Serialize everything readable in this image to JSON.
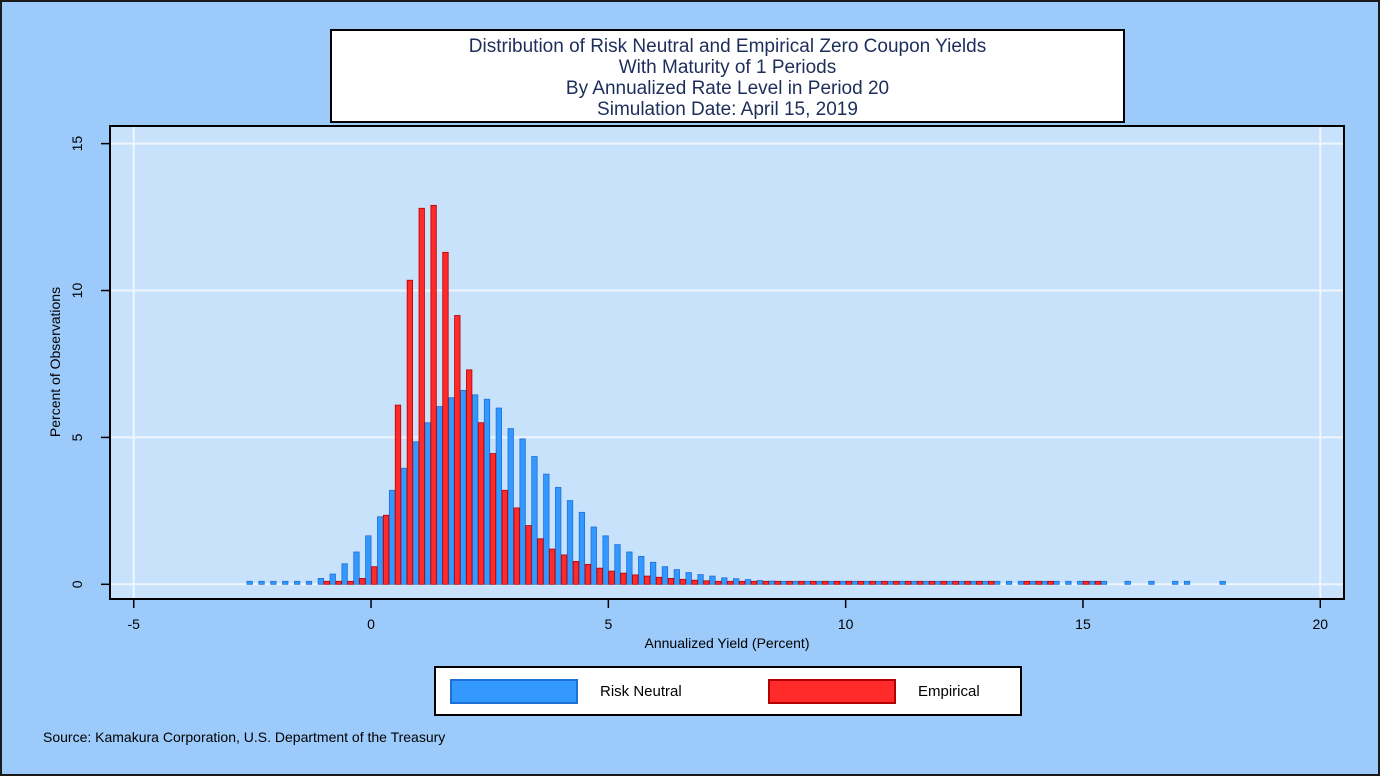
{
  "title_lines": [
    "Distribution of Risk Neutral and Empirical Zero Coupon Yields",
    "With Maturity of 1 Periods",
    "By Annualized Rate Level in Period 20",
    "Simulation Date: April 15, 2019"
  ],
  "source": "Source: Kamakura Corporation, U.S. Department of the Treasury",
  "colors": {
    "page_bg": "#9ccbfb",
    "plot_bg": "#c8e2fb",
    "grid": "#eef5fd",
    "risk_neutral": "#3399ff",
    "risk_neutral_edge": "#1f70d6",
    "empirical": "#ff2a2a",
    "empirical_edge": "#b30000"
  },
  "chart_data": {
    "type": "bar",
    "xlabel": "Annualized Yield (Percent)",
    "ylabel": "Percent of Observations",
    "xlim": [
      -5.5,
      20.5
    ],
    "ylim": [
      -0.5,
      15.6
    ],
    "x_ticks": [
      -5,
      0,
      5,
      10,
      15,
      20
    ],
    "y_ticks": [
      0,
      5,
      10,
      15
    ],
    "grid": true,
    "legend_position": "bottom",
    "bin_width": 0.25,
    "series": [
      {
        "name": "Risk Neutral",
        "x": [
          -2.5,
          -2.25,
          -2.0,
          -1.75,
          -1.5,
          -1.25,
          -1.0,
          -0.75,
          -0.5,
          -0.25,
          0.0,
          0.25,
          0.5,
          0.75,
          1.0,
          1.25,
          1.5,
          1.75,
          2.0,
          2.25,
          2.5,
          2.75,
          3.0,
          3.25,
          3.5,
          3.75,
          4.0,
          4.25,
          4.5,
          4.75,
          5.0,
          5.25,
          5.5,
          5.75,
          6.0,
          6.25,
          6.5,
          6.75,
          7.0,
          7.25,
          7.5,
          7.75,
          8.0,
          8.25,
          8.5,
          8.75,
          9.0,
          9.25,
          9.5,
          9.75,
          10.0,
          10.25,
          10.5,
          10.75,
          11.0,
          11.25,
          11.5,
          11.75,
          12.0,
          12.25,
          12.5,
          12.75,
          13.0,
          13.25,
          13.5,
          13.75,
          14.0,
          14.25,
          14.5,
          14.75,
          15.0,
          15.25,
          15.5,
          16.0,
          16.5,
          17.0,
          17.25,
          18.0
        ],
        "values": [
          0.02,
          0.02,
          0.03,
          0.04,
          0.05,
          0.08,
          0.2,
          0.35,
          0.7,
          1.1,
          1.65,
          2.3,
          3.2,
          3.95,
          4.85,
          5.5,
          6.05,
          6.35,
          6.6,
          6.45,
          6.3,
          6.0,
          5.3,
          4.95,
          4.35,
          3.75,
          3.3,
          2.85,
          2.45,
          1.95,
          1.65,
          1.35,
          1.1,
          0.95,
          0.75,
          0.6,
          0.5,
          0.4,
          0.33,
          0.28,
          0.22,
          0.19,
          0.16,
          0.13,
          0.11,
          0.1,
          0.08,
          0.07,
          0.06,
          0.05,
          0.05,
          0.04,
          0.04,
          0.03,
          0.03,
          0.03,
          0.02,
          0.02,
          0.02,
          0.02,
          0.02,
          0.02,
          0.02,
          0.02,
          0.02,
          0.02,
          0.02,
          0.02,
          0.02,
          0.02,
          0.02,
          0.02,
          0.02,
          0.02,
          0.02,
          0.02,
          0.02,
          0.02
        ]
      },
      {
        "name": "Empirical",
        "x": [
          -1.0,
          -0.75,
          -0.5,
          -0.25,
          0.0,
          0.25,
          0.5,
          0.75,
          1.0,
          1.25,
          1.5,
          1.75,
          2.0,
          2.25,
          2.5,
          2.75,
          3.0,
          3.25,
          3.5,
          3.75,
          4.0,
          4.25,
          4.5,
          4.75,
          5.0,
          5.25,
          5.5,
          5.75,
          6.0,
          6.25,
          6.5,
          6.75,
          7.0,
          7.25,
          7.5,
          7.75,
          8.0,
          8.25,
          8.5,
          8.75,
          9.0,
          9.25,
          9.5,
          9.75,
          10.0,
          10.25,
          10.5,
          10.75,
          11.0,
          11.25,
          11.5,
          11.75,
          12.0,
          12.25,
          12.5,
          12.75,
          13.0,
          13.75,
          14.0,
          14.25,
          15.0,
          15.25
        ],
        "values": [
          0.03,
          0.05,
          0.1,
          0.2,
          0.6,
          2.35,
          6.1,
          10.35,
          12.8,
          12.9,
          11.3,
          9.15,
          7.3,
          5.5,
          4.45,
          3.2,
          2.6,
          2.0,
          1.55,
          1.2,
          1.0,
          0.78,
          0.68,
          0.55,
          0.45,
          0.38,
          0.32,
          0.28,
          0.24,
          0.2,
          0.17,
          0.14,
          0.12,
          0.1,
          0.09,
          0.08,
          0.07,
          0.06,
          0.05,
          0.05,
          0.04,
          0.04,
          0.04,
          0.03,
          0.03,
          0.03,
          0.03,
          0.03,
          0.03,
          0.03,
          0.03,
          0.03,
          0.03,
          0.03,
          0.03,
          0.03,
          0.03,
          0.03,
          0.03,
          0.03,
          0.03,
          0.03
        ]
      }
    ]
  }
}
